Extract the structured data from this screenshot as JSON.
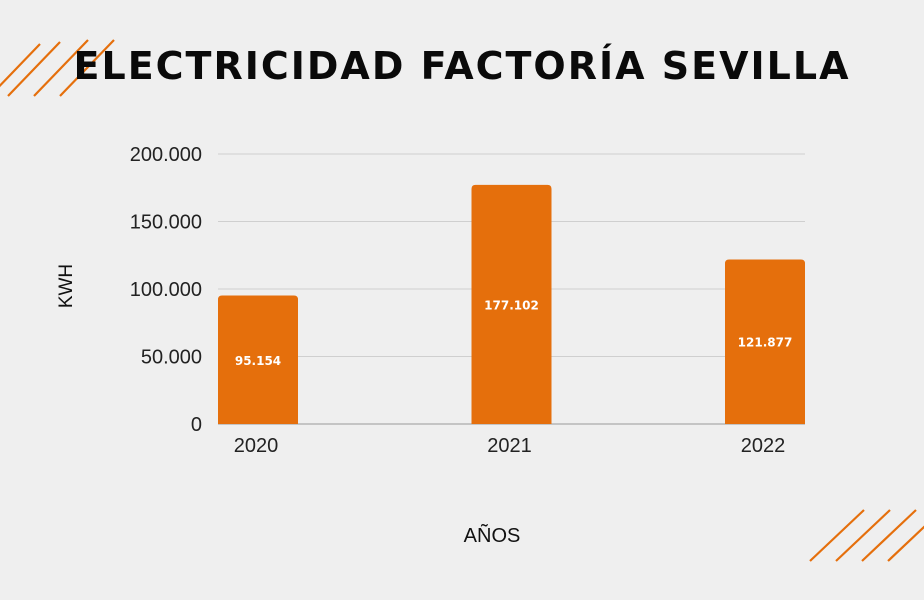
{
  "chart_data": {
    "type": "bar",
    "title": "ELECTRICIDAD FACTORÍA SEVILLA",
    "categories": [
      "2020",
      "2021",
      "2022"
    ],
    "values": [
      95154,
      177102,
      121877
    ],
    "value_labels": [
      "95.154",
      "177.102",
      "121.877"
    ],
    "xlabel": "AÑOS",
    "ylabel": "KWH",
    "ylim": [
      0,
      200000
    ],
    "yticks": [
      0,
      50000,
      100000,
      150000,
      200000
    ],
    "ytick_labels": [
      "0",
      "50.000",
      "100.000",
      "150.000",
      "200.000"
    ],
    "grid": true,
    "bar_color": "#e56f0c",
    "accent_color": "#e56f0c"
  }
}
